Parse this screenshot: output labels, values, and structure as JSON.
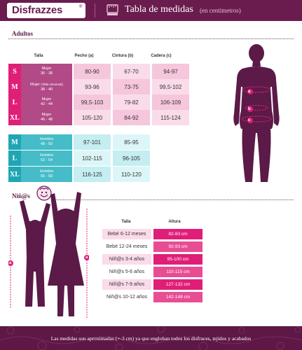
{
  "header": {
    "logo": "Disfrazzes",
    "logo_reg": "®",
    "title": "Tabla de medidas",
    "subtitle": "(en centímetros)"
  },
  "adults": {
    "section_label": "Adultos",
    "columns": [
      "Talla",
      "Pecho (a)",
      "Cintura (b)",
      "Cadera (c)"
    ],
    "women": [
      {
        "code": "S",
        "desc": "Mujer",
        "range": "36 - 38",
        "pecho": "80-90",
        "cintura": "67-70",
        "cadera": "94-97"
      },
      {
        "code": "M",
        "desc": "Mujer",
        "desc_note": "(Talla universal)",
        "range": "38 - 40",
        "pecho": "93-96",
        "cintura": "73-75",
        "cadera": "99,5-102"
      },
      {
        "code": "L",
        "desc": "Mujer",
        "range": "42 - 44",
        "pecho": "99,5-103",
        "cintura": "79-82",
        "cadera": "106-109"
      },
      {
        "code": "XL",
        "desc": "Mujer",
        "range": "46 - 48",
        "pecho": "105-120",
        "cintura": "84-92",
        "cadera": "115-124"
      }
    ],
    "men": [
      {
        "code": "M",
        "desc": "Hombre",
        "range": "48 - 50",
        "pecho": "97-101",
        "cintura": "85-95"
      },
      {
        "code": "L",
        "desc": "Hombre",
        "range": "52 - 54",
        "pecho": "102-115",
        "cintura": "96-105"
      },
      {
        "code": "XL",
        "desc": "Hombre",
        "range": "56 - 58",
        "pecho": "116-125",
        "cintura": "110-120"
      }
    ],
    "body_markers": [
      "a",
      "b",
      "c"
    ]
  },
  "kids": {
    "section_label": "Niñ@s",
    "columns": [
      "Talla",
      "Altura"
    ],
    "rows": [
      {
        "label": "Bebé 6-12 meses",
        "altura": "82-83 cm"
      },
      {
        "label": "Bebé 12-24 meses",
        "altura": "92-93 cm"
      },
      {
        "label": "Niñ@s 3-4 años",
        "altura": "95-100 cm"
      },
      {
        "label": "Niñ@s 5-6 años",
        "altura": "110-115 cm"
      },
      {
        "label": "Niñ@s 7-9 años",
        "altura": "127-132 cm"
      },
      {
        "label": "Niñ@s 10-12 años",
        "altura": "142-148 cm"
      }
    ],
    "height_markers": [
      "a",
      "a"
    ]
  },
  "footer": {
    "text": "Las medidas son aproximadas (+-3 cm) ya que engloban todos los disfraces, tejidos y acabados"
  },
  "colors": {
    "brand": "#6b1c4f",
    "code_women": "#e01e78",
    "code_men": "#1fa6b4",
    "desc_women": "#b14a86",
    "desc_men": "#45bcc8",
    "cell_women_1": "#f6c6dc",
    "cell_women_2": "#fadbe9",
    "cell_men_1": "#c4eef1",
    "cell_men_2": "#dcf6f8"
  }
}
